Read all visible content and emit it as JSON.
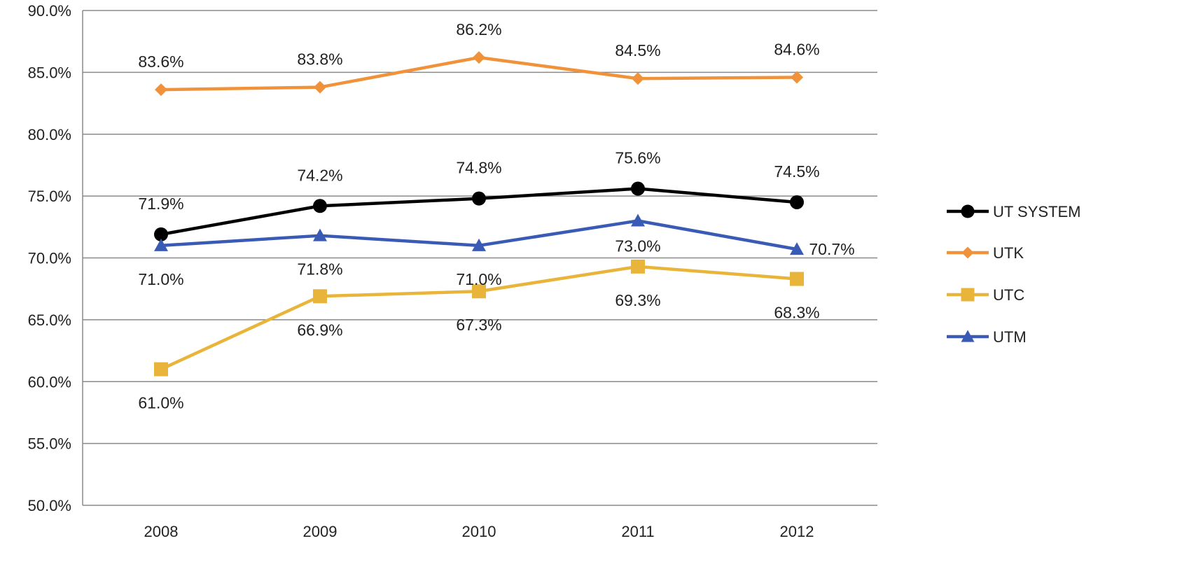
{
  "chart_data": {
    "type": "line",
    "categories": [
      "2008",
      "2009",
      "2010",
      "2011",
      "2012"
    ],
    "y_ticks": [
      "50.0%",
      "55.0%",
      "60.0%",
      "65.0%",
      "70.0%",
      "75.0%",
      "80.0%",
      "85.0%",
      "90.0%"
    ],
    "ylim": [
      50,
      90
    ],
    "grid": "horizontal",
    "legend_position": "right",
    "series": [
      {
        "name": "UT SYSTEM",
        "values": [
          71.9,
          74.2,
          74.8,
          75.6,
          74.5
        ],
        "labels": [
          "71.9%",
          "74.2%",
          "74.8%",
          "75.6%",
          "74.5%"
        ],
        "color": "#000000",
        "marker": "circle"
      },
      {
        "name": "UTK",
        "values": [
          83.6,
          83.8,
          86.2,
          84.5,
          84.6
        ],
        "labels": [
          "83.6%",
          "83.8%",
          "86.2%",
          "84.5%",
          "84.6%"
        ],
        "color": "#F0923A",
        "marker": "diamond"
      },
      {
        "name": "UTC",
        "values": [
          61.0,
          66.9,
          67.3,
          69.3,
          68.3
        ],
        "labels": [
          "61.0%",
          "66.9%",
          "67.3%",
          "69.3%",
          "68.3%"
        ],
        "color": "#E8B53A",
        "marker": "square"
      },
      {
        "name": "UTM",
        "values": [
          71.0,
          71.8,
          71.0,
          73.0,
          70.7
        ],
        "labels": [
          "71.0%",
          "71.8%",
          "71.0%",
          "73.0%",
          "70.7%"
        ],
        "color": "#3A5BB5",
        "marker": "triangle"
      }
    ]
  }
}
